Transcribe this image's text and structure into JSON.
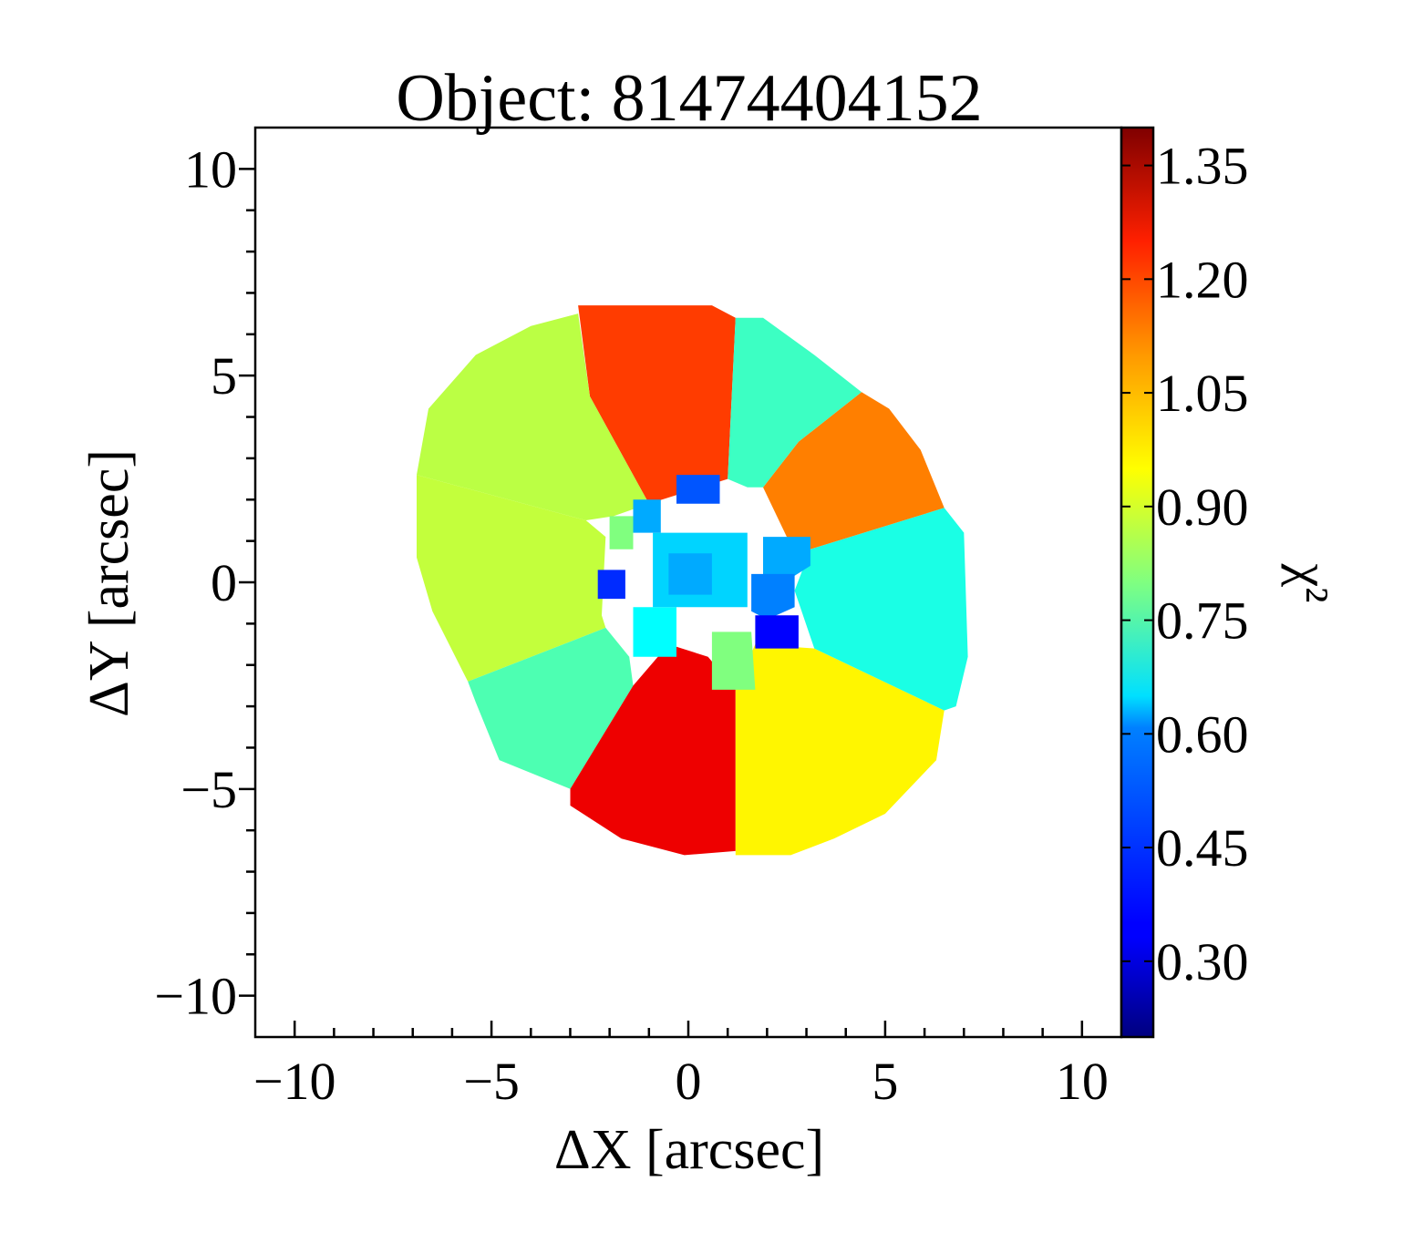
{
  "chart_data": {
    "type": "heatmap",
    "title": "Object: 81474404152",
    "xlabel": "ΔX [arcsec]",
    "ylabel": "ΔY [arcsec]",
    "xlim": [
      -11,
      11
    ],
    "ylim": [
      -11,
      11
    ],
    "xticks": [
      -10,
      -5,
      0,
      5,
      10
    ],
    "yticks": [
      -10,
      -5,
      0,
      5,
      10
    ],
    "grid": false,
    "colorbar": {
      "label": "χ²",
      "colormap": "jet",
      "range": [
        0.2,
        1.4
      ],
      "ticks": [
        "0.30",
        "0.45",
        "0.60",
        "0.75",
        "0.90",
        "1.05",
        "1.20",
        "1.35"
      ]
    },
    "bins": [
      {
        "name": "top-center",
        "value": 1.18,
        "polygon": [
          [
            -2.8,
            6.7
          ],
          [
            0.6,
            6.7
          ],
          [
            1.2,
            6.4
          ],
          [
            1.0,
            2.5
          ],
          [
            -1.0,
            1.9
          ],
          [
            -2.5,
            4.5
          ]
        ]
      },
      {
        "name": "upper-left",
        "value": 0.87,
        "polygon": [
          [
            -2.8,
            6.5
          ],
          [
            -2.5,
            4.5
          ],
          [
            -1.0,
            1.9
          ],
          [
            -1.9,
            1.6
          ],
          [
            -2.6,
            1.5
          ],
          [
            -6.9,
            2.6
          ],
          [
            -6.6,
            4.2
          ],
          [
            -5.4,
            5.5
          ],
          [
            -4.0,
            6.2
          ]
        ]
      },
      {
        "name": "left",
        "value": 0.88,
        "polygon": [
          [
            -6.9,
            2.6
          ],
          [
            -2.6,
            1.5
          ],
          [
            -2.1,
            1.1
          ],
          [
            -2.2,
            -0.8
          ],
          [
            -2.1,
            -1.1
          ],
          [
            -5.6,
            -2.4
          ],
          [
            -6.5,
            -0.7
          ],
          [
            -6.9,
            0.6
          ]
        ]
      },
      {
        "name": "lower-left",
        "value": 0.74,
        "polygon": [
          [
            -5.6,
            -2.4
          ],
          [
            -2.1,
            -1.1
          ],
          [
            -1.5,
            -1.8
          ],
          [
            -1.4,
            -2.5
          ],
          [
            -3.0,
            -5.0
          ],
          [
            -4.8,
            -4.3
          ],
          [
            -5.4,
            -2.9
          ]
        ]
      },
      {
        "name": "bottom-center",
        "value": 1.27,
        "polygon": [
          [
            -1.4,
            -2.5
          ],
          [
            -0.5,
            -1.5
          ],
          [
            0.5,
            -1.8
          ],
          [
            1.2,
            -2.6
          ],
          [
            1.2,
            -6.5
          ],
          [
            -0.1,
            -6.6
          ],
          [
            -1.7,
            -6.2
          ],
          [
            -3.0,
            -5.4
          ],
          [
            -3.0,
            -5.0
          ]
        ]
      },
      {
        "name": "bottom-right",
        "value": 0.96,
        "polygon": [
          [
            1.2,
            -2.6
          ],
          [
            1.7,
            -1.5
          ],
          [
            3.2,
            -1.6
          ],
          [
            6.5,
            -3.1
          ],
          [
            6.3,
            -4.3
          ],
          [
            5.0,
            -5.6
          ],
          [
            3.7,
            -6.2
          ],
          [
            2.6,
            -6.6
          ],
          [
            1.2,
            -6.6
          ]
        ]
      },
      {
        "name": "right",
        "value": 0.68,
        "polygon": [
          [
            3.2,
            -1.6
          ],
          [
            2.7,
            -0.2
          ],
          [
            3.1,
            0.8
          ],
          [
            6.5,
            1.8
          ],
          [
            7.0,
            1.2
          ],
          [
            7.1,
            -1.8
          ],
          [
            6.8,
            -3.0
          ],
          [
            6.5,
            -3.1
          ]
        ]
      },
      {
        "name": "upper-right-orange",
        "value": 1.1,
        "polygon": [
          [
            1.9,
            2.3
          ],
          [
            2.5,
            1.1
          ],
          [
            3.1,
            0.8
          ],
          [
            6.5,
            1.8
          ],
          [
            5.9,
            3.2
          ],
          [
            5.1,
            4.2
          ],
          [
            4.4,
            4.6
          ],
          [
            2.8,
            3.4
          ]
        ]
      },
      {
        "name": "upper-right-teal",
        "value": 0.72,
        "polygon": [
          [
            1.2,
            6.4
          ],
          [
            1.0,
            2.5
          ],
          [
            1.5,
            2.3
          ],
          [
            1.9,
            2.3
          ],
          [
            2.8,
            3.4
          ],
          [
            4.4,
            4.6
          ],
          [
            3.2,
            5.5
          ],
          [
            1.9,
            6.4
          ]
        ]
      },
      {
        "name": "core-top-blue",
        "value": 0.45,
        "polygon": [
          [
            -0.3,
            2.6
          ],
          [
            0.8,
            2.6
          ],
          [
            0.8,
            1.9
          ],
          [
            -0.3,
            1.9
          ]
        ]
      },
      {
        "name": "core-left-green",
        "value": 0.8,
        "polygon": [
          [
            -2.0,
            1.6
          ],
          [
            -1.4,
            1.6
          ],
          [
            -1.4,
            0.8
          ],
          [
            -2.0,
            0.8
          ]
        ]
      },
      {
        "name": "core-upper-left",
        "value": 0.55,
        "polygon": [
          [
            -1.4,
            2.0
          ],
          [
            -0.7,
            2.0
          ],
          [
            -0.7,
            1.2
          ],
          [
            -1.4,
            1.2
          ]
        ]
      },
      {
        "name": "core-far-left-blue",
        "value": 0.4,
        "polygon": [
          [
            -2.3,
            0.3
          ],
          [
            -1.6,
            0.3
          ],
          [
            -1.6,
            -0.4
          ],
          [
            -2.3,
            -0.4
          ]
        ]
      },
      {
        "name": "core-right",
        "value": 0.55,
        "polygon": [
          [
            1.9,
            1.1
          ],
          [
            3.1,
            1.1
          ],
          [
            3.1,
            0.4
          ],
          [
            2.6,
            0.1
          ],
          [
            1.9,
            0.1
          ]
        ]
      },
      {
        "name": "core-right-lower",
        "value": 0.5,
        "polygon": [
          [
            1.6,
            0.2
          ],
          [
            2.7,
            0.2
          ],
          [
            2.7,
            -0.6
          ],
          [
            2.0,
            -0.9
          ],
          [
            1.6,
            -0.7
          ]
        ]
      },
      {
        "name": "core-dark-blue",
        "value": 0.35,
        "polygon": [
          [
            1.7,
            -0.8
          ],
          [
            2.8,
            -0.8
          ],
          [
            2.8,
            -1.6
          ],
          [
            1.7,
            -1.6
          ]
        ]
      },
      {
        "name": "core-bottom-green",
        "value": 0.8,
        "polygon": [
          [
            0.6,
            -1.2
          ],
          [
            1.6,
            -1.2
          ],
          [
            1.7,
            -2.6
          ],
          [
            0.6,
            -2.6
          ]
        ]
      },
      {
        "name": "core-bottom-left",
        "value": 0.65,
        "polygon": [
          [
            -1.4,
            -0.6
          ],
          [
            -0.3,
            -0.6
          ],
          [
            -0.3,
            -1.8
          ],
          [
            -1.4,
            -1.8
          ]
        ]
      },
      {
        "name": "core-center",
        "value": 0.6,
        "polygon": [
          [
            -0.9,
            1.2
          ],
          [
            1.5,
            1.2
          ],
          [
            1.5,
            -0.6
          ],
          [
            -0.9,
            -0.6
          ]
        ]
      },
      {
        "name": "core-center-inner",
        "value": 0.55,
        "polygon": [
          [
            -0.5,
            0.7
          ],
          [
            0.6,
            0.7
          ],
          [
            0.6,
            -0.3
          ],
          [
            -0.5,
            -0.3
          ]
        ]
      }
    ]
  }
}
